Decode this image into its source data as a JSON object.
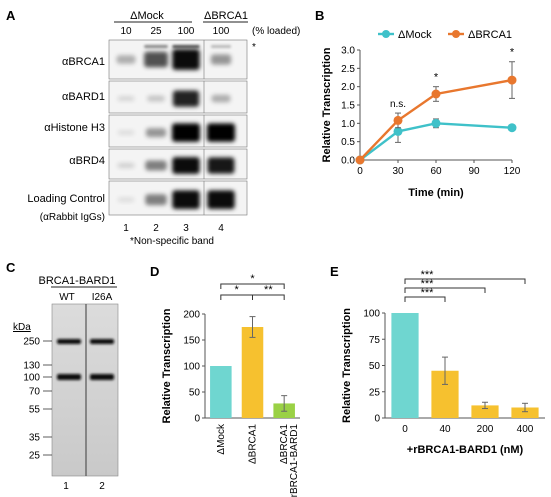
{
  "panels": {
    "A": {
      "letter": "A",
      "group_mock": "ΔMock",
      "group_brca1": "ΔBRCA1",
      "loaded_cols": [
        "10",
        "25",
        "100",
        "100"
      ],
      "loaded_unit": "(% loaded)",
      "asterisk": "*",
      "rows": [
        "αBRCA1",
        "αBARD1",
        "αHistone H3",
        "αBRD4",
        "Loading Control"
      ],
      "loading_sub": "(αRabbit IgGs)",
      "lanes": [
        "1",
        "2",
        "3",
        "4"
      ],
      "footnote": "*Non-specific band",
      "band_intensity": [
        [
          0.25,
          0.65,
          0.95,
          0.35
        ],
        [
          0.08,
          0.15,
          0.85,
          0.25
        ],
        [
          0.05,
          0.35,
          1.0,
          1.0
        ],
        [
          0.1,
          0.45,
          0.95,
          0.9
        ],
        [
          0.05,
          0.45,
          0.95,
          0.95
        ]
      ]
    },
    "C": {
      "letter": "C",
      "title": "BRCA1-BARD1",
      "lanes": [
        "WT",
        "I26A"
      ],
      "lane_numbers": [
        "1",
        "2"
      ],
      "kda_label": "kDa",
      "markers": [
        "250",
        "130",
        "100",
        "70",
        "55",
        "35",
        "25"
      ]
    }
  },
  "colors": {
    "mock": "#3fc1c9",
    "brca1": "#e8772e",
    "bar_teal": "#6fd6d0",
    "bar_yellow": "#f6c12f",
    "bar_green": "#9ad145"
  },
  "chart_data": [
    {
      "panel": "B",
      "type": "line",
      "x": [
        0,
        30,
        60,
        120
      ],
      "series": [
        {
          "name": "ΔMock",
          "values": [
            0,
            0.78,
            1.0,
            0.88
          ],
          "errors": [
            0,
            0.3,
            0.12,
            0.05
          ]
        },
        {
          "name": "ΔBRCA1",
          "values": [
            0,
            1.08,
            1.8,
            2.18
          ],
          "errors": [
            0,
            0.2,
            0.2,
            0.5
          ]
        }
      ],
      "xlabel": "Time (min)",
      "ylabel": "Relative Transcription",
      "xticks": [
        0,
        30,
        60,
        90,
        120
      ],
      "yticks": [
        0,
        0.5,
        1,
        1.5,
        2,
        2.5,
        3
      ],
      "xlim": [
        0,
        120
      ],
      "ylim": [
        0,
        3
      ],
      "annotations": [
        {
          "x": 30,
          "text": "n.s."
        },
        {
          "x": 60,
          "text": "*"
        },
        {
          "x": 120,
          "text": "*"
        }
      ],
      "legend": "top",
      "grid": false
    },
    {
      "panel": "D",
      "type": "bar",
      "categories": [
        "ΔMock",
        "ΔBRCA1",
        "ΔBRCA1 +rBRCA1-BARD1"
      ],
      "category_lines": [
        [
          "ΔMock"
        ],
        [
          "ΔBRCA1"
        ],
        [
          "ΔBRCA1",
          "+rBRCA1-BARD1"
        ]
      ],
      "values": [
        100,
        175,
        28
      ],
      "errors": [
        0,
        20,
        15
      ],
      "ylabel": "Relative Transcription",
      "yticks": [
        0,
        50,
        100,
        150,
        200
      ],
      "ylim": [
        0,
        200
      ],
      "significance": [
        {
          "from": 0,
          "to": 1,
          "text": "*"
        },
        {
          "from": 1,
          "to": 2,
          "text": "**"
        },
        {
          "from": 0,
          "to": 2,
          "text": "*"
        }
      ],
      "grid": false
    },
    {
      "panel": "E",
      "type": "bar",
      "categories": [
        "0",
        "40",
        "200",
        "400"
      ],
      "values": [
        100,
        45,
        12,
        10
      ],
      "errors": [
        0,
        13,
        3,
        4
      ],
      "xlabel": "+rBRCA1-BARD1 (nM)",
      "ylabel": "Relative Transcription",
      "yticks": [
        0,
        25,
        50,
        75,
        100
      ],
      "ylim": [
        0,
        100
      ],
      "significance": [
        {
          "from": 0,
          "to": 1,
          "text": "***"
        },
        {
          "from": 0,
          "to": 2,
          "text": "***"
        },
        {
          "from": 0,
          "to": 3,
          "text": "***"
        }
      ],
      "grid": false
    }
  ]
}
